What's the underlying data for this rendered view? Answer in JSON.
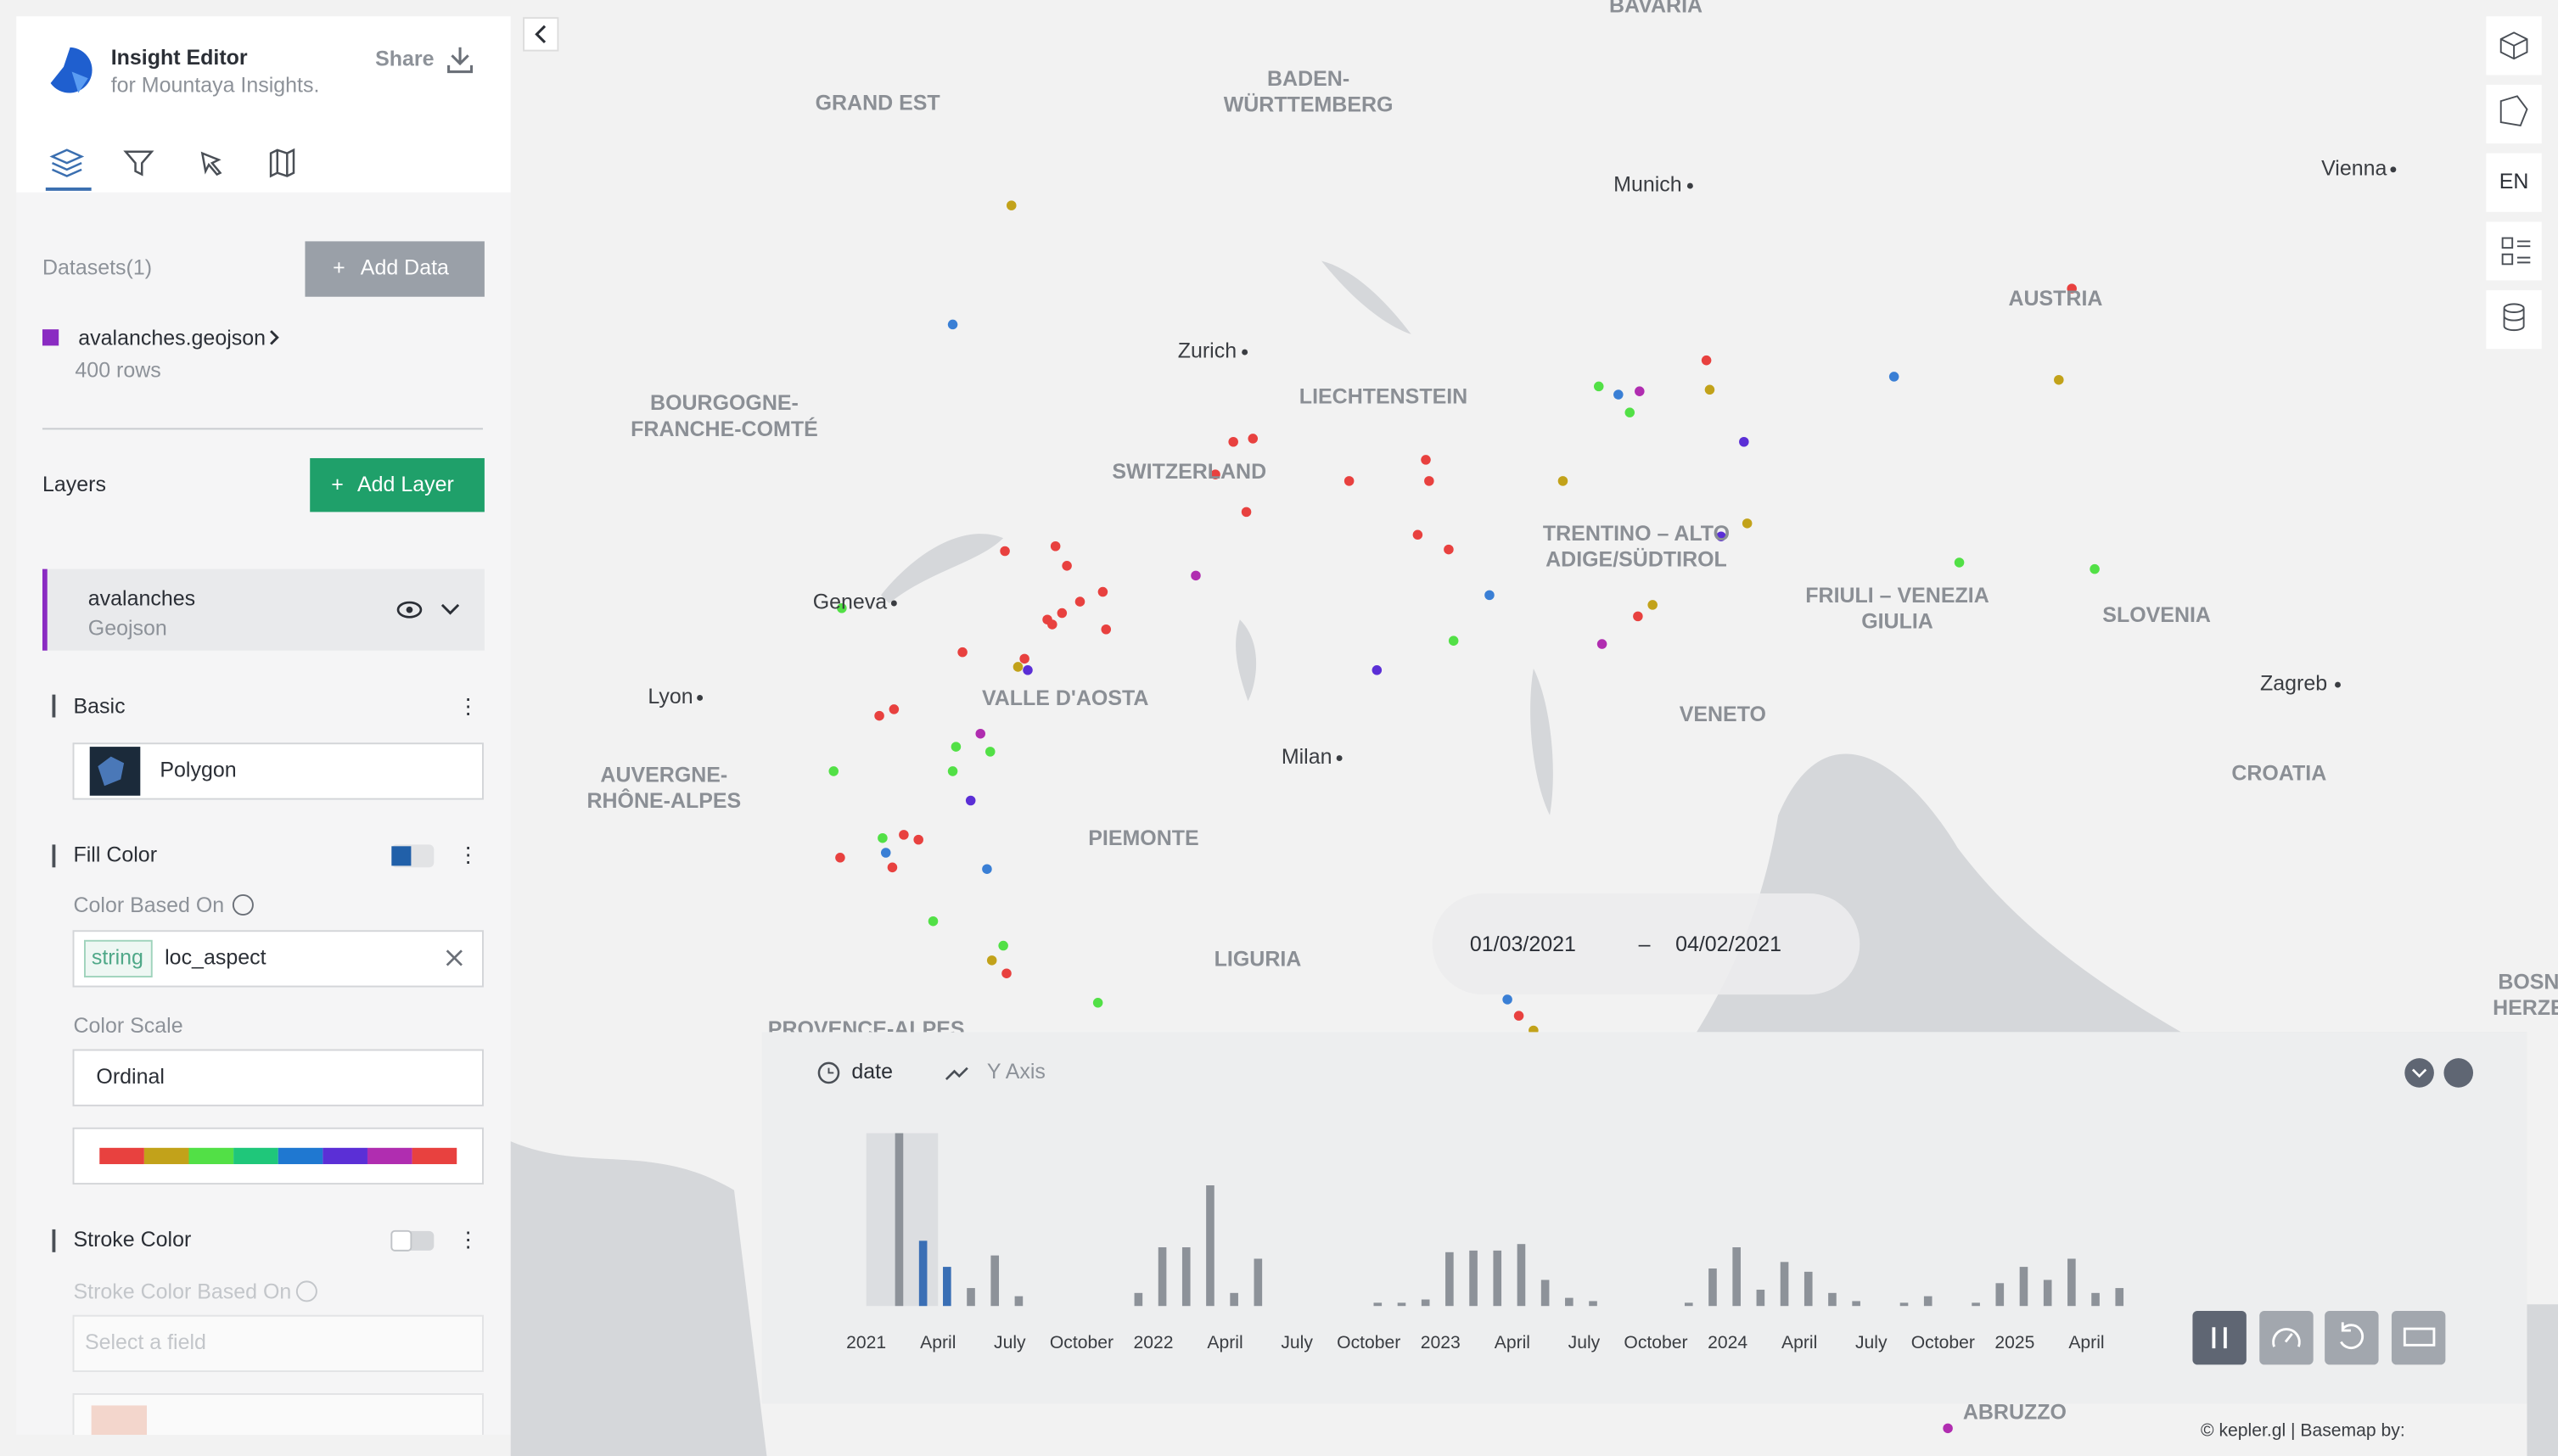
{
  "header": {
    "title": "Insight Editor",
    "subtitle": "for Mountaya Insights.",
    "share": "Share"
  },
  "datasets": {
    "label": "Datasets(1)",
    "add_data": "Add Data",
    "items": [
      {
        "name": "avalanches.geojson",
        "rows": "400 rows"
      }
    ]
  },
  "layers": {
    "title": "Layers",
    "add_layer": "Add Layer",
    "items": [
      {
        "name": "avalanches",
        "type": "Geojson"
      }
    ]
  },
  "basic": {
    "title": "Basic",
    "layer_type": "Polygon"
  },
  "fill_color": {
    "title": "Fill Color",
    "based_on_label": "Color Based On",
    "field_type": "string",
    "field": "loc_aspect",
    "scale_label": "Color Scale",
    "scale": "Ordinal",
    "palette": [
      "#e8413f",
      "#c2a21a",
      "#52e046",
      "#1fc77a",
      "#1f78d1",
      "#5b2fd6",
      "#b02db0",
      "#e8413f"
    ]
  },
  "stroke_color": {
    "title": "Stroke Color",
    "based_on_label": "Stroke Color Based On",
    "placeholder": "Select a field"
  },
  "map": {
    "regions": [
      "BAVARIA",
      "GRAND EST",
      "BADEN-",
      "WÜRTTEMBERG",
      "AUSTRIA",
      "LIECHTENSTEIN",
      "BOURGOGNE-",
      "FRANCHE-COMTÉ",
      "SWITZERLAND",
      "TRENTINO – ALTO",
      "ADIGE/SÜDTIROL",
      "FRIULI – VENEZIA",
      "GIULIA",
      "SLOVENIA",
      "VALLE D'AOSTA",
      "VENETO",
      "CROATIA",
      "AUVERGNE-",
      "RHÔNE-ALPES",
      "PIEMONTE",
      "LIGURIA",
      "PROVENCE-ALPES",
      "ABRUZZO",
      "BOSN",
      "HERZE"
    ],
    "cities": [
      "Munich",
      "Vienna",
      "Zurich",
      "Geneva",
      "Lyon",
      "Milan",
      "Zagreb"
    ],
    "language": "EN"
  },
  "time_range": {
    "start": "01/03/2021",
    "separator": "–",
    "end": "04/02/2021"
  },
  "timeline": {
    "field": "date",
    "y_axis": "Y Axis",
    "ticks": [
      "2021",
      "April",
      "July",
      "October",
      "2022",
      "April",
      "July",
      "October",
      "2023",
      "April",
      "July",
      "October",
      "2024",
      "April",
      "July",
      "October",
      "2025",
      "April"
    ],
    "counts": [
      0,
      106,
      40,
      24,
      11,
      31,
      6,
      0,
      0,
      0,
      0,
      8,
      36,
      36,
      74,
      8,
      29,
      0,
      0,
      0,
      0,
      2,
      2,
      4,
      33,
      34,
      34,
      38,
      16,
      5,
      3,
      0,
      0,
      0,
      2,
      23,
      36,
      10,
      27,
      21,
      8,
      3,
      0,
      2,
      6,
      0,
      2,
      14,
      24,
      16,
      29,
      8,
      11
    ]
  },
  "attribution": "© kepler.gl | Basemap by:"
}
